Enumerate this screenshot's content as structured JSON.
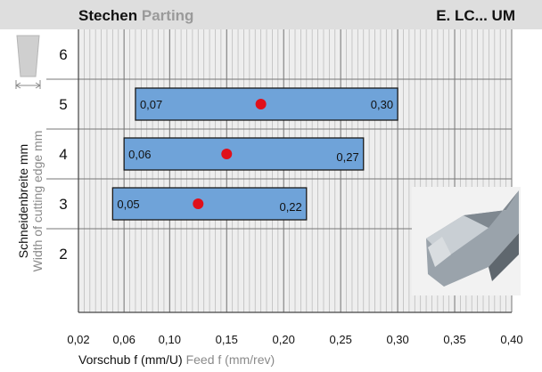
{
  "header": {
    "title_de": "Stechen",
    "title_en": "Parting",
    "code": "E. LC... UM"
  },
  "chart_data": {
    "type": "bar",
    "orientation": "horizontal-range",
    "xlabel_de": "Vorschub f (mm/U)",
    "xlabel_en": "Feed f (mm/rev)",
    "ylabel_de": "Schneidenbreite mm",
    "ylabel_en": "Width of cutting edge mm",
    "xlim": [
      0.02,
      0.4
    ],
    "x_ticks": [
      "0,02",
      "0,06",
      "0,10",
      "0,15",
      "0,20",
      "0,25",
      "0,30",
      "0,35",
      "0,40"
    ],
    "x_tick_values": [
      0.02,
      0.06,
      0.1,
      0.15,
      0.2,
      0.25,
      0.3,
      0.35,
      0.4
    ],
    "categories": [
      "6",
      "5",
      "4",
      "3",
      "2"
    ],
    "grid": true,
    "ranges": [
      {
        "width": "5",
        "min": 0.07,
        "max": 0.3,
        "recommended": 0.18,
        "min_label": "0,07",
        "max_label": "0,30"
      },
      {
        "width": "4",
        "min": 0.06,
        "max": 0.27,
        "recommended": 0.15,
        "min_label": "0,06",
        "max_label": "0,27"
      },
      {
        "width": "3",
        "min": 0.05,
        "max": 0.22,
        "recommended": 0.125,
        "min_label": "0,05",
        "max_label": "0,22"
      }
    ],
    "colors": {
      "bar_fill": "#6fa3d9",
      "bar_stroke": "#1a1a1a",
      "dot": "#e0101a",
      "grid_minor": "#bdbdbd",
      "grid_major": "#777777",
      "header_bg": "#dedede",
      "plot_bg": "#eeeeee"
    },
    "icon": "insert-width-icon",
    "photo": "grooving-insert-photo"
  }
}
